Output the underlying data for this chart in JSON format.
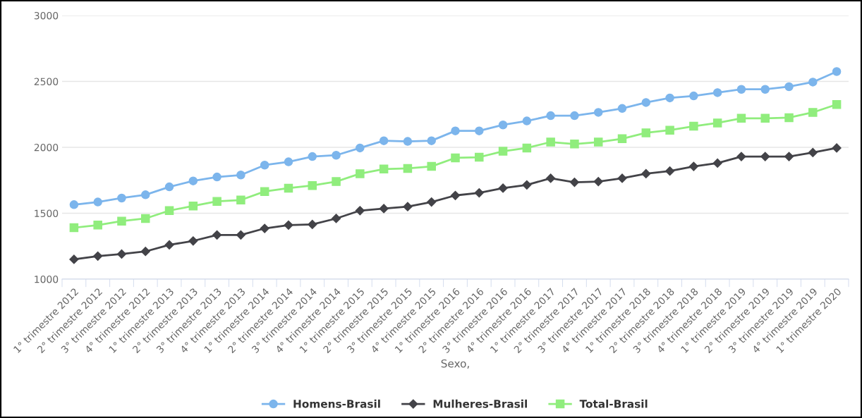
{
  "chart_data": {
    "type": "line",
    "xlabel": "Sexo,",
    "categories": [
      "1° trimestre 2012",
      "2° trimestre 2012",
      "3° trimestre 2012",
      "4° trimestre 2012",
      "1° trimestre 2013",
      "2° trimestre 2013",
      "3° trimestre 2013",
      "4° trimestre 2013",
      "1° trimestre 2014",
      "2° trimestre 2014",
      "3° trimestre 2014",
      "4° trimestre 2014",
      "1° trimestre 2015",
      "2° trimestre 2015",
      "3° trimestre 2015",
      "4° trimestre 2015",
      "1° trimestre 2016",
      "2° trimestre 2016",
      "3° trimestre 2016",
      "4° trimestre 2016",
      "1° trimestre 2017",
      "2° trimestre 2017",
      "3° trimestre 2017",
      "4° trimestre 2017",
      "1° trimestre 2018",
      "2° trimestre 2018",
      "3° trimestre 2018",
      "4° trimestre 2018",
      "1° trimestre 2019",
      "2° trimestre 2019",
      "3° trimestre 2019",
      "4° trimestre 2019",
      "1° trimestre 2020"
    ],
    "series": [
      {
        "name": "Homens-Brasil",
        "color": "#7cb5ec",
        "marker": "circle",
        "values": [
          1565,
          1585,
          1615,
          1640,
          1700,
          1745,
          1775,
          1790,
          1865,
          1890,
          1930,
          1940,
          1995,
          2050,
          2045,
          2050,
          2125,
          2125,
          2170,
          2200,
          2240,
          2240,
          2265,
          2295,
          2340,
          2375,
          2390,
          2415,
          2440,
          2440,
          2460,
          2495,
          2575
        ]
      },
      {
        "name": "Mulheres-Brasil",
        "color": "#434348",
        "marker": "diamond",
        "values": [
          1150,
          1175,
          1190,
          1210,
          1260,
          1290,
          1335,
          1335,
          1385,
          1410,
          1415,
          1460,
          1520,
          1535,
          1550,
          1585,
          1635,
          1655,
          1690,
          1715,
          1765,
          1735,
          1740,
          1765,
          1800,
          1820,
          1855,
          1880,
          1930,
          1930,
          1930,
          1960,
          1995
        ]
      },
      {
        "name": "Total-Brasil",
        "color": "#90ed7d",
        "marker": "square",
        "values": [
          1390,
          1410,
          1440,
          1460,
          1520,
          1555,
          1590,
          1600,
          1665,
          1690,
          1710,
          1740,
          1800,
          1835,
          1840,
          1855,
          1920,
          1925,
          1970,
          1995,
          2040,
          2025,
          2040,
          2065,
          2110,
          2130,
          2160,
          2185,
          2220,
          2220,
          2225,
          2265,
          2325
        ]
      }
    ],
    "ylim": [
      1000,
      3000
    ],
    "yticks": [
      1000,
      1500,
      2000,
      2500,
      3000
    ],
    "grid": "y",
    "legend": "bottom",
    "line_style": "solid"
  }
}
